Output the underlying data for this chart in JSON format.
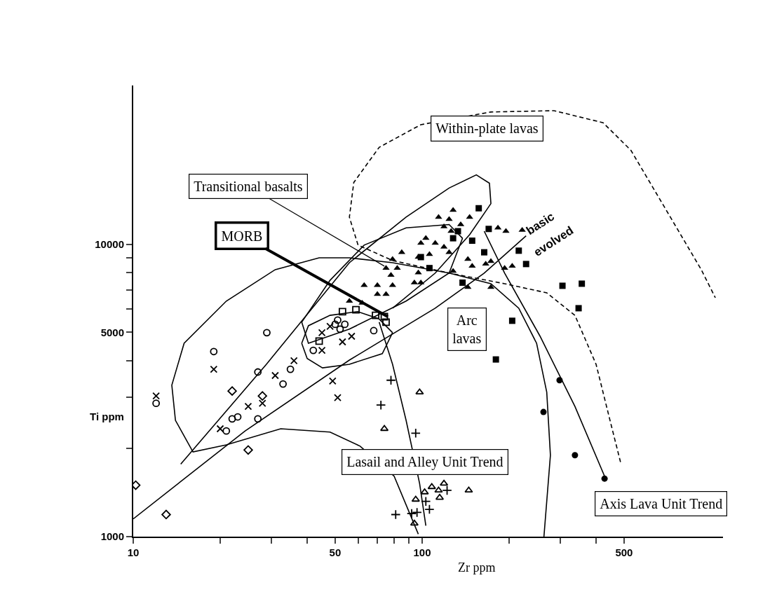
{
  "chart_data": {
    "type": "scatter",
    "xlabel": "Zr ppm",
    "ylabel": "Ti ppm",
    "log": "xy",
    "xlim": [
      10,
      1100
    ],
    "ylim": [
      1000,
      35000
    ],
    "xticks": [
      10,
      {
        "value": 20,
        "label": null
      },
      {
        "value": 30,
        "label": null
      },
      {
        "value": 40,
        "label": null
      },
      50,
      {
        "value": 60,
        "label": null
      },
      {
        "value": 70,
        "label": null
      },
      {
        "value": 80,
        "label": null
      },
      {
        "value": 90,
        "label": null
      },
      100,
      {
        "value": 200,
        "label": null
      },
      {
        "value": 300,
        "label": null
      },
      {
        "value": 400,
        "label": null
      },
      500
    ],
    "yticks": [
      1000,
      {
        "value": 2000,
        "label": null
      },
      {
        "value": 3000,
        "label": null
      },
      {
        "value": 4000,
        "label": null
      },
      5000,
      {
        "value": 6000,
        "label": null
      },
      {
        "value": 7000,
        "label": null
      },
      {
        "value": 8000,
        "label": null
      },
      {
        "value": 9000,
        "label": null
      },
      10000
    ],
    "annotations": [
      "Within-plate lavas",
      {
        "text": "Transitional basalts",
        "x": 74,
        "y": 8430
      },
      {
        "text": "MORB",
        "x": 76,
        "y": 5660
      },
      "Arc\nlavas",
      "Lasail and Alley Unit Trend",
      "Axis Lava Unit Trend",
      "basic",
      "evolved"
    ],
    "series": [
      {
        "type": "line",
        "line_style": "dashed",
        "color": "#000000",
        "x": [
          486,
          447,
          400,
          338,
          270,
          193,
          124,
          79,
          60,
          56,
          58,
          71,
          99,
          173,
          286,
          423,
          528,
          700,
          925,
          1035
        ],
        "values": [
          1800,
          2500,
          3890,
          5720,
          6830,
          7340,
          7980,
          8810,
          9950,
          12400,
          16300,
          21500,
          25700,
          28400,
          28700,
          26100,
          21000,
          13100,
          8200,
          6570
        ]
      },
      {
        "type": "line",
        "line_style": "solid",
        "color": "#000000",
        "x": [
          264,
          278,
          270,
          249,
          216,
          173,
          124,
          79,
          56,
          44,
          31,
          21,
          15,
          13.6,
          14,
          16.1,
          21,
          32.4,
          48,
          61,
          80,
          97
        ],
        "values": [
          1000,
          1900,
          3120,
          4590,
          6050,
          7340,
          7980,
          8660,
          9000,
          9000,
          8200,
          6400,
          4590,
          3300,
          2500,
          1950,
          2060,
          2340,
          2280,
          2040,
          1610,
          1020
        ]
      },
      {
        "type": "line",
        "line_style": "solid",
        "color": "#000000",
        "x": [
          14.6,
          28.9,
          56,
          88,
          124,
          154,
          171,
          173,
          146,
          111,
          79
        ],
        "values": [
          1770,
          3890,
          8660,
          12400,
          15600,
          17300,
          16200,
          13800,
          10800,
          7980,
          6050
        ]
      },
      {
        "type": "line",
        "line_style": "solid",
        "color": "#000000",
        "x": [
          10,
          24.4,
          56,
          111,
          164,
          229
        ],
        "values": [
          1150,
          2300,
          4020,
          6050,
          7980,
          10700
        ]
      },
      {
        "type": "line",
        "line_style": "solid",
        "color": "#000000",
        "x": [
          38.3,
          48,
          63,
          88,
          124,
          138
        ],
        "values": [
          5420,
          7540,
          9950,
          11400,
          11700,
          10500
        ]
      },
      {
        "type": "line",
        "line_style": "solid",
        "color": "#000000",
        "x": [
          38.3,
          40.4,
          56,
          88,
          124,
          138
        ],
        "values": [
          5420,
          4590,
          5130,
          6400,
          7980,
          10500
        ]
      },
      {
        "type": "line",
        "line_style": "solid",
        "color": "#000000",
        "x": [
          38.3,
          40.4,
          48,
          59.8,
          70.8,
          79
        ],
        "values": [
          4590,
          5270,
          5720,
          5890,
          5570,
          4990
        ]
      },
      {
        "type": "line",
        "line_style": "solid",
        "color": "#000000",
        "x": [
          38.3,
          40,
          45.2,
          56,
          72.8,
          79
        ],
        "values": [
          4590,
          4070,
          3780,
          3890,
          4230,
          4990
        ]
      },
      {
        "type": "line",
        "line_style": "solid",
        "color": "#000000",
        "x": [
          164,
          193,
          256,
          338,
          428
        ],
        "values": [
          11100,
          7980,
          4850,
          2790,
          1610
        ]
      },
      {
        "type": "line",
        "line_style": "solid",
        "color": "#000000",
        "x": [
          71,
          79,
          88,
          98,
          103
        ],
        "values": [
          5420,
          3890,
          2500,
          1520,
          1090
        ]
      },
      {
        "marker": "triangle",
        "color": "#000000",
        "x": [
          114,
          128,
          124,
          146,
          119,
          126,
          136,
          103,
          99,
          111,
          119,
          124,
          106,
          97,
          85,
          79,
          82,
          78,
          75,
          97,
          94,
          99,
          79,
          75,
          70,
          63,
          70,
          56,
          62,
          128,
          144,
          149,
          166,
          173,
          193,
          205,
          183,
          144,
          173,
          222,
          195
        ],
        "values": [
          12400,
          13100,
          12200,
          12400,
          11500,
          11100,
          11700,
          10500,
          10100,
          10100,
          9800,
          9400,
          9250,
          9050,
          9400,
          8900,
          8300,
          7850,
          8300,
          8000,
          7400,
          7400,
          7250,
          6750,
          6750,
          7250,
          7250,
          6400,
          6300,
          8100,
          8900,
          8430,
          8570,
          8760,
          8300,
          8430,
          11400,
          7140,
          7140,
          11200,
          11100
        ]
      },
      {
        "marker": "square",
        "color": "#000000",
        "x": [
          157,
          170,
          216,
          229,
          205,
          180,
          133,
          128,
          149,
          164,
          99,
          106,
          138,
          306,
          357,
          348
        ],
        "values": [
          13300,
          11300,
          9520,
          8570,
          5480,
          4040,
          11100,
          10500,
          10300,
          9400,
          9050,
          8300,
          7400,
          7220,
          7340,
          6050
        ]
      },
      {
        "marker": "square-open",
        "color": "#000000",
        "x": [
          53,
          44,
          59,
          69,
          75,
          74
        ],
        "values": [
          5890,
          4670,
          5980,
          5720,
          5420,
          5660
        ]
      },
      {
        "marker": "circle-open",
        "color": "#000000",
        "x": [
          51,
          52,
          54,
          68,
          42,
          35,
          33,
          22,
          23,
          21,
          50,
          19,
          29,
          12,
          27,
          27
        ],
        "values": [
          5510,
          5130,
          5330,
          5070,
          4340,
          3740,
          3330,
          2530,
          2570,
          2300,
          5330,
          4300,
          4990,
          2860,
          3660,
          2530
        ]
      },
      {
        "marker": "x",
        "color": "#000000",
        "x": [
          12,
          19,
          25,
          28,
          31,
          36,
          45,
          53,
          49,
          51,
          48,
          20,
          57,
          45
        ],
        "values": [
          3030,
          3740,
          2790,
          2860,
          3560,
          4000,
          4340,
          4640,
          3410,
          2990,
          5240,
          2340,
          4850,
          4990
        ]
      },
      {
        "marker": "diamond-open",
        "color": "#000000",
        "x": [
          22,
          25,
          13,
          10.2,
          28
        ],
        "values": [
          3150,
          1980,
          1190,
          1500,
          3030
        ]
      },
      {
        "marker": "cross",
        "color": "#000000",
        "x": [
          78,
          72,
          95,
          81,
          92,
          103,
          106,
          122,
          96
        ],
        "values": [
          3430,
          2820,
          2260,
          1190,
          1200,
          1320,
          1240,
          1440,
          1210
        ]
      },
      {
        "marker": "triangle-open",
        "color": "#000000",
        "x": [
          98,
          74,
          145,
          95,
          102,
          108,
          114,
          115,
          119,
          94
        ],
        "values": [
          3120,
          2340,
          1440,
          1340,
          1420,
          1480,
          1440,
          1360,
          1520,
          1110
        ]
      },
      {
        "marker": "circle",
        "color": "#000000",
        "x": [
          299,
          263,
          338,
          428
        ],
        "values": [
          3430,
          2670,
          1900,
          1580
        ]
      }
    ]
  }
}
